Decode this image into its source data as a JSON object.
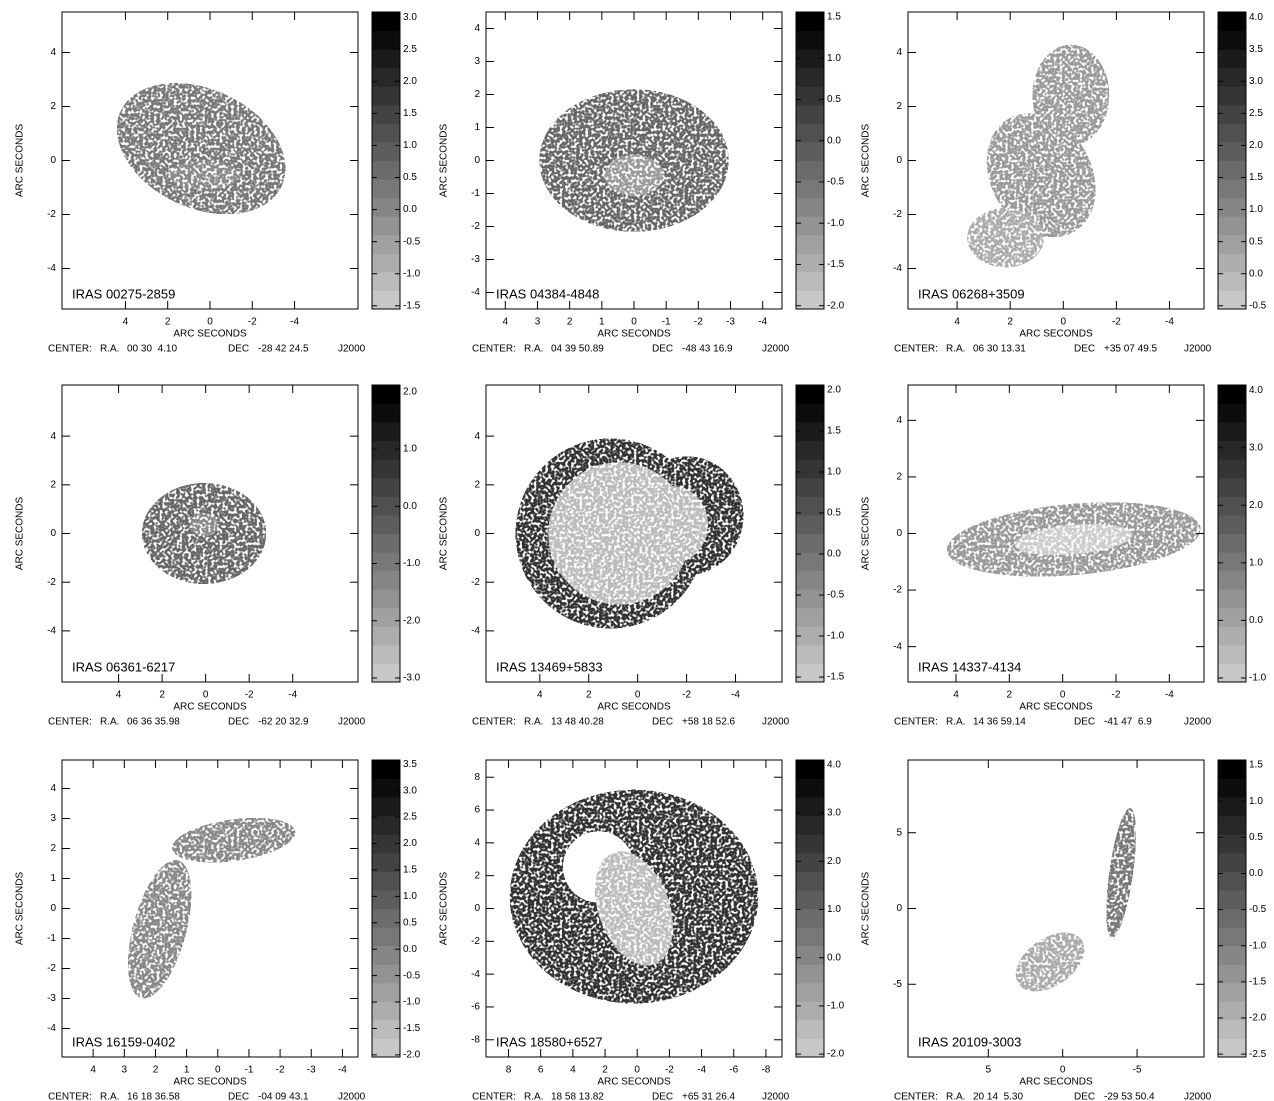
{
  "axis_label": "ARC SECONDS",
  "center_label": "CENTER:",
  "ra_label": "R.A.",
  "dec_label": "DEC",
  "panels": [
    {
      "name": "IRAS 00275-2859",
      "ra": "00 30  4.10",
      "dec": "-28 42 24.5",
      "epoch": "J2000",
      "xlim": [
        7,
        -7
      ],
      "xticks": [
        4,
        2,
        0,
        -2,
        -4
      ],
      "ylim": [
        -5.5,
        5.5
      ],
      "yticks": [
        -4,
        -2,
        0,
        2,
        4
      ],
      "cblim": [
        -1.55,
        3.08
      ],
      "cbticks": [
        {
          "value": 3,
          "label": "3.0"
        },
        2.5,
        {
          "value": 2,
          "label": "2.0"
        },
        1.5,
        {
          "value": 1,
          "label": "1.0"
        },
        0.5,
        {
          "value": 0,
          "label": "0.0"
        },
        -0.5,
        {
          "value": -1,
          "label": "-1.0"
        },
        -1.5
      ]
    },
    {
      "name": "IRAS 04384-4848",
      "ra": "04 39 50.89",
      "dec": "-48 43 16.9",
      "epoch": "J2000",
      "xlim": [
        4.6,
        -4.6
      ],
      "xticks": [
        4,
        3,
        2,
        1,
        0,
        -1,
        -2,
        -3,
        -4
      ],
      "ylim": [
        -4.5,
        4.5
      ],
      "yticks": [
        -4,
        -3,
        -2,
        -1,
        0,
        1,
        2,
        3,
        4
      ],
      "cblim": [
        -2.04,
        1.56
      ],
      "cbticks": [
        1.5,
        {
          "value": 1,
          "label": "1.0"
        },
        0.5,
        {
          "value": 0,
          "label": "0.0"
        },
        -0.5,
        {
          "value": -1,
          "label": "-1.0"
        },
        -1.5,
        {
          "value": -2,
          "label": "-2.0"
        }
      ]
    },
    {
      "name": "IRAS 06268+3509",
      "ra": "06 30 13.31",
      "dec": "+35 07 49.5",
      "epoch": "J2000",
      "xlim": [
        5.85,
        -5.3
      ],
      "xticks": [
        4,
        2,
        0,
        -2,
        -4
      ],
      "ylim": [
        -5.5,
        5.5
      ],
      "yticks": [
        -4,
        -2,
        0,
        2,
        4
      ],
      "cblim": [
        -0.55,
        4.08
      ],
      "cbticks": [
        {
          "value": 4,
          "label": "4.0"
        },
        3.5,
        {
          "value": 3,
          "label": "3.0"
        },
        2.5,
        {
          "value": 2,
          "label": "2.0"
        },
        1.5,
        {
          "value": 1,
          "label": "1.0"
        },
        0.5,
        {
          "value": 0,
          "label": "0.0"
        },
        -0.5
      ]
    },
    {
      "name": "IRAS 06361-6217",
      "ra": "06 36 35.98",
      "dec": "-62 20 32.9",
      "epoch": "J2000",
      "xlim": [
        6.6,
        -7
      ],
      "xticks": [
        4,
        2,
        0,
        -2,
        -4
      ],
      "ylim": [
        -6.1,
        6.1
      ],
      "yticks": [
        -4,
        -2,
        0,
        2,
        4
      ],
      "cblim": [
        -3.07,
        2.12
      ],
      "cbticks": [
        {
          "value": 2,
          "label": "2.0"
        },
        {
          "value": 1,
          "label": "1.0"
        },
        {
          "value": 0,
          "label": "0.0"
        },
        {
          "value": -1,
          "label": "-1.0"
        },
        {
          "value": -2,
          "label": "-2.0"
        },
        {
          "value": -3,
          "label": "-3.0"
        }
      ]
    },
    {
      "name": "IRAS 13469+5833",
      "ra": "13 48 40.28",
      "dec": "+58 18 52.6",
      "epoch": "J2000",
      "xlim": [
        6.2,
        -5.9
      ],
      "xticks": [
        4,
        2,
        0,
        -2,
        -4
      ],
      "ylim": [
        -6.1,
        6.1
      ],
      "yticks": [
        -4,
        -2,
        0,
        2,
        4
      ],
      "cblim": [
        -1.56,
        2.06
      ],
      "cbticks": [
        {
          "value": 2,
          "label": "2.0"
        },
        1.5,
        {
          "value": 1,
          "label": "1.0"
        },
        0.5,
        {
          "value": 0,
          "label": "0.0"
        },
        -0.5,
        {
          "value": -1,
          "label": "-1.0"
        },
        -1.5
      ]
    },
    {
      "name": "IRAS 14337-4134",
      "ra": "14 36 59.14",
      "dec": "-41 47  6.9",
      "epoch": "J2000",
      "xlim": [
        5.8,
        -5.3
      ],
      "xticks": [
        4,
        2,
        0,
        -2,
        -4
      ],
      "ylim": [
        -5.25,
        5.25
      ],
      "yticks": [
        -4,
        -2,
        0,
        2,
        4
      ],
      "cblim": [
        -1.07,
        4.09
      ],
      "cbticks": [
        {
          "value": 4,
          "label": "4.0"
        },
        {
          "value": 3,
          "label": "3.0"
        },
        {
          "value": 2,
          "label": "2.0"
        },
        {
          "value": 1,
          "label": "1.0"
        },
        {
          "value": 0,
          "label": "0.0"
        },
        {
          "value": -1,
          "label": "-1.0"
        }
      ]
    },
    {
      "name": "IRAS 16159-0402",
      "ra": "16 18 36.58",
      "dec": "-04 09 43.1",
      "epoch": "J2000",
      "xlim": [
        5.0,
        -4.5
      ],
      "xticks": [
        4,
        3,
        2,
        1,
        0,
        -1,
        -2,
        -3,
        -4
      ],
      "ylim": [
        -4.95,
        4.95
      ],
      "yticks": [
        -4,
        -3,
        -2,
        -1,
        0,
        1,
        2,
        3,
        4
      ],
      "cblim": [
        -2.04,
        3.58
      ],
      "cbticks": [
        3.5,
        {
          "value": 3,
          "label": "3.0"
        },
        2.5,
        {
          "value": 2,
          "label": "2.0"
        },
        1.5,
        {
          "value": 1,
          "label": "1.0"
        },
        0.5,
        {
          "value": 0,
          "label": "0.0"
        },
        -0.5,
        {
          "value": -1,
          "label": "-1.0"
        },
        -1.5,
        {
          "value": -2,
          "label": "-2.0"
        }
      ]
    },
    {
      "name": "IRAS 18580+6527",
      "ra": "18 58 13.82",
      "dec": "+65 31 26.4",
      "epoch": "J2000",
      "xlim": [
        9.4,
        -9.0
      ],
      "xticks": [
        8,
        6,
        4,
        2,
        0,
        -2,
        -4,
        -6,
        -8
      ],
      "ylim": [
        -9.05,
        9.05
      ],
      "yticks": [
        -8,
        -6,
        -4,
        -2,
        0,
        2,
        4,
        6,
        8
      ],
      "cblim": [
        -2.06,
        4.1
      ],
      "cbticks": [
        {
          "value": 4,
          "label": "4.0"
        },
        {
          "value": 3,
          "label": "3.0"
        },
        {
          "value": 2,
          "label": "2.0"
        },
        {
          "value": 1,
          "label": "1.0"
        },
        {
          "value": 0,
          "label": "0.0"
        },
        {
          "value": -1,
          "label": "-1.0"
        },
        {
          "value": -2,
          "label": "-2.0"
        }
      ]
    },
    {
      "name": "IRAS 20109-3003",
      "ra": "20 14  5.30",
      "dec": "-29 53 50.4",
      "epoch": "J2000",
      "xlim": [
        10.4,
        -9.5
      ],
      "xticks": [
        5,
        0,
        -5
      ],
      "ylim": [
        -9.8,
        9.8
      ],
      "yticks": [
        -5,
        0,
        5
      ],
      "cblim": [
        -2.54,
        1.57
      ],
      "cbticks": [
        1.5,
        {
          "value": 1,
          "label": "1.0"
        },
        0.5,
        {
          "value": 0,
          "label": "0.0"
        },
        -0.5,
        {
          "value": -1,
          "label": "-1.0"
        },
        -1.5,
        {
          "value": -2,
          "label": "-2.0"
        },
        -2.5
      ]
    }
  ]
}
